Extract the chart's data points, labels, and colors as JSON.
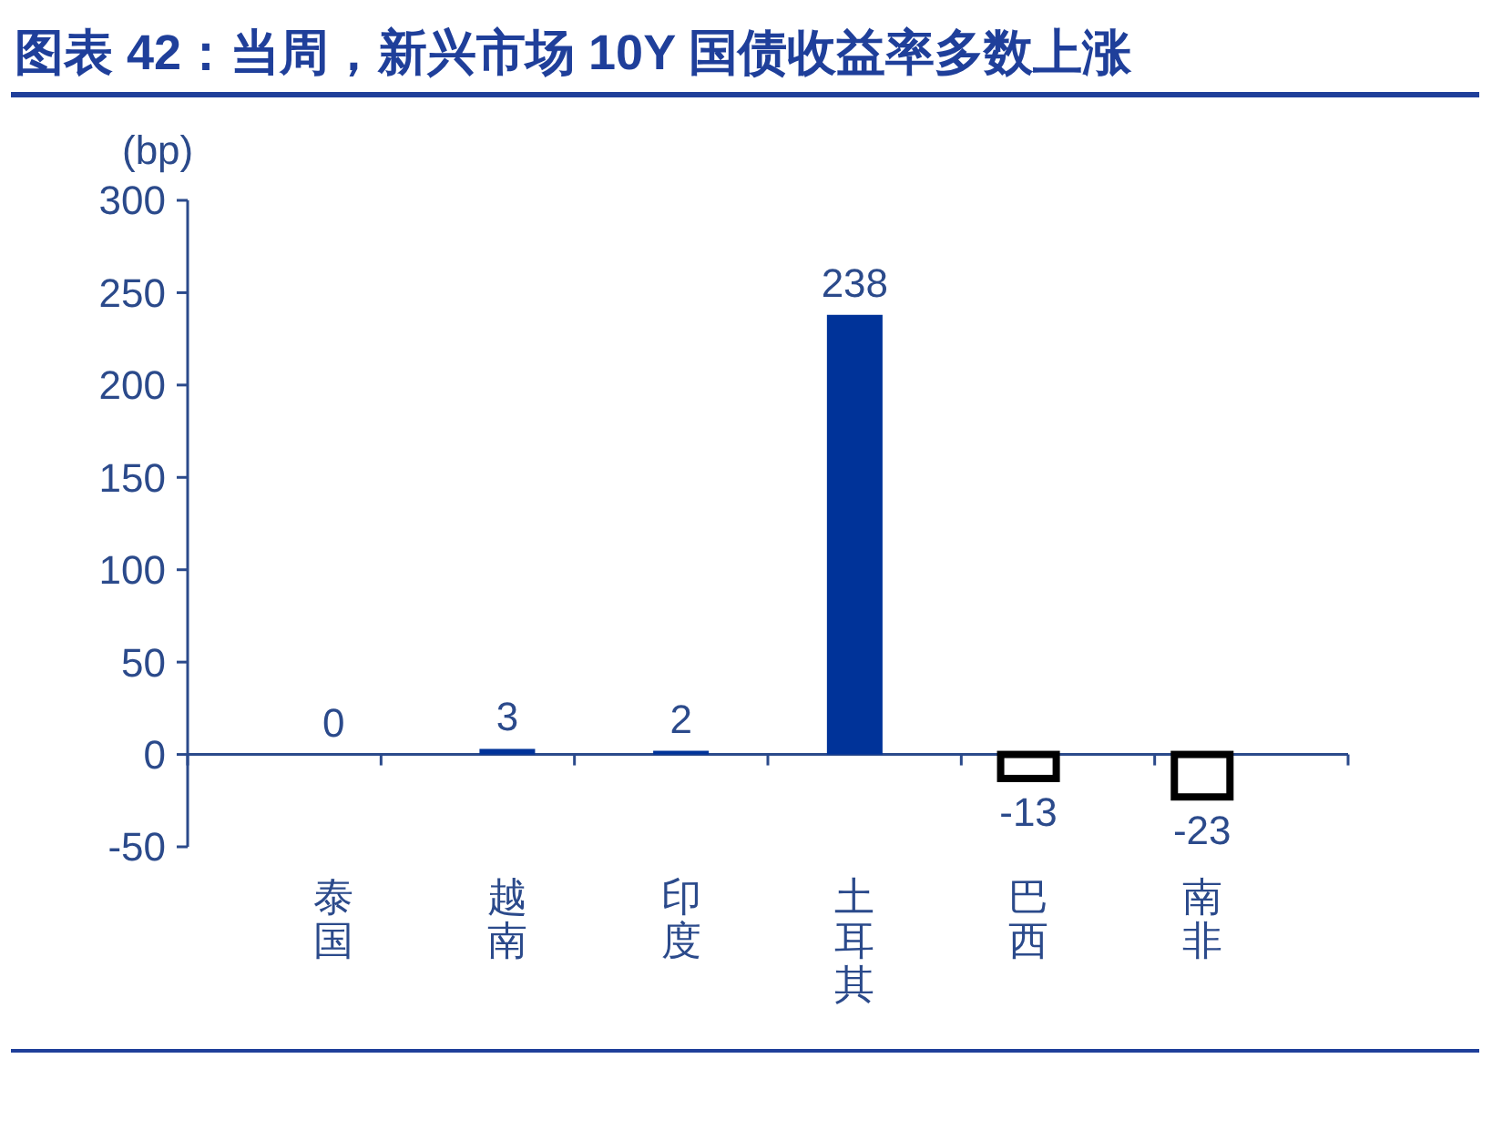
{
  "chart_data": {
    "type": "bar",
    "title": "图表 42：当周，新兴市场 10Y 国债收益率多数上涨",
    "ylabel": "(bp)",
    "categories": [
      "泰国",
      "越南",
      "印度",
      "土耳其",
      "巴西",
      "南非"
    ],
    "values": [
      0,
      3,
      2,
      238,
      -13,
      -23
    ],
    "colors": [
      "#003399",
      "#003399",
      "#003399",
      "#003399",
      "#000000",
      "#000000"
    ],
    "ylim": [
      -50,
      300
    ],
    "yticks": [
      -50,
      0,
      50,
      100,
      150,
      200,
      250,
      300
    ],
    "data_labels": true,
    "ref_lines": [
      {
        "axis": "y",
        "value": 0,
        "color": "#2b4a8b"
      }
    ]
  }
}
